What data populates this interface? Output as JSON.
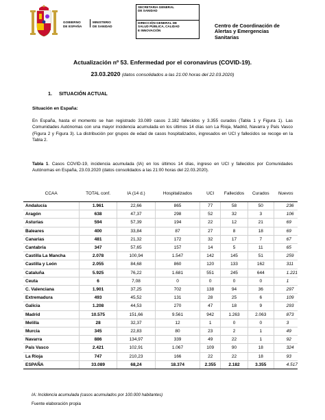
{
  "header": {
    "gobierno": "GOBIERNO\nDE ESPAÑA",
    "ministerio": "MINISTERIO\nDE SANIDAD",
    "box1": "SECRETARIA GENERAL\nDE SANIDAD",
    "box2": "DIRECCIÓN GENERAL DE\nSALUD PÚBLICA, CALIDAD\nE INNOVACIÓN",
    "centro": "Centro de Coordinación de\nAlertas y Emergencias\nSanitarias"
  },
  "title": {
    "line1": "Actualización nº 53. Enfermedad por el coronavirus (COVID-19).",
    "line2_date": "23.03.2020",
    "line2_sub": "(datos consolidados a las 21:00 horas del 22.03.2020)"
  },
  "section": {
    "number": "1.",
    "label": "SITUACIÓN ACTUAL"
  },
  "subsection": "Situación en España:",
  "paragraph": "En España, hasta el momento se han registrado 33.089 casos 2.182 fallecidos y 3.355 curados (Tabla 1 y Figura 1). Las Comunidades Autónomas con una mayor incidencia acumulada en los últimos 14 días son La Rioja, Madrid, Navarra y País Vasco (Figura 2 y Figura 3). La distribución por grupos de edad de casos hospitalizados, ingresados en UCI y fallecidos se recoge en la Tabla 2.",
  "table_caption": {
    "label": "Tabla 1",
    "text": ". Casos COVID-19, incidencia acumulada (IA) en los últimos 14 días, ingreso en UCI y fallecidos por Comunidades Autónomas en España, 23.03.2020 (datos consolidados a las 21:00 horas del 22.03.2020)."
  },
  "table": {
    "headers": [
      "CCAA",
      "TOTAL conf.",
      "IA (14 d.)",
      "Hospitalizados",
      "UCI",
      "Fallecidos",
      "Curados",
      "Nuevos"
    ],
    "rows": [
      [
        "Andalucía",
        "1.961",
        "22,66",
        "865",
        "77",
        "58",
        "50",
        "236"
      ],
      [
        "Aragón",
        "638",
        "47,37",
        "298",
        "52",
        "32",
        "3",
        "106"
      ],
      [
        "Asturias",
        "594",
        "57,39",
        "194",
        "22",
        "12",
        "21",
        "69"
      ],
      [
        "Baleares",
        "400",
        "33,84",
        "87",
        "27",
        "8",
        "18",
        "69"
      ],
      [
        "Canarias",
        "481",
        "21,32",
        "172",
        "32",
        "17",
        "7",
        "67"
      ],
      [
        "Cantabria",
        "347",
        "57,65",
        "157",
        "14",
        "5",
        "11",
        "65"
      ],
      [
        "Castilla La Mancha",
        "2.078",
        "100,94",
        "1.547",
        "142",
        "145",
        "51",
        "259"
      ],
      [
        "Castilla y León",
        "2.055",
        "84,68",
        "860",
        "120",
        "133",
        "162",
        "311"
      ],
      [
        "Cataluña",
        "5.925",
        "76,22",
        "1.681",
        "551",
        "245",
        "644",
        "1.221"
      ],
      [
        "Ceuta",
        "6",
        "7,08",
        "0",
        "0",
        "0",
        "0",
        "1"
      ],
      [
        "C. Valenciana",
        "1.901",
        "37,25",
        "702",
        "138",
        "94",
        "36",
        "297"
      ],
      [
        "Extremadura",
        "493",
        "45,52",
        "131",
        "28",
        "25",
        "6",
        "109"
      ],
      [
        "Galicia",
        "1.208",
        "44,53",
        "270",
        "47",
        "18",
        "9",
        "293"
      ],
      [
        "Madrid",
        "10.575",
        "151,66",
        "9.561",
        "942",
        "1.263",
        "2.063",
        "873"
      ],
      [
        "Melilla",
        "28",
        "32,37",
        "12",
        "1",
        "0",
        "0",
        "3"
      ],
      [
        "Murcia",
        "345",
        "22,83",
        "80",
        "23",
        "2",
        "1",
        "49"
      ],
      [
        "Navarra",
        "886",
        "134,97",
        "339",
        "49",
        "22",
        "1",
        "92"
      ],
      [
        "País Vasco",
        "2.421",
        "102,91",
        "1.067",
        "109",
        "90",
        "18",
        "324"
      ],
      [
        "La Rioja",
        "747",
        "210,23",
        "166",
        "22",
        "22",
        "18",
        "93"
      ]
    ],
    "total": [
      "ESPAÑA",
      "33.089",
      "68,24",
      "18.374",
      "2.355",
      "2.182",
      "3.355",
      "4.517"
    ]
  },
  "notes": {
    "ia": "IA: Incidencia acumulada (casos acumulados por 100.000 habitantes)",
    "source": "Fuente elaboración propia"
  }
}
